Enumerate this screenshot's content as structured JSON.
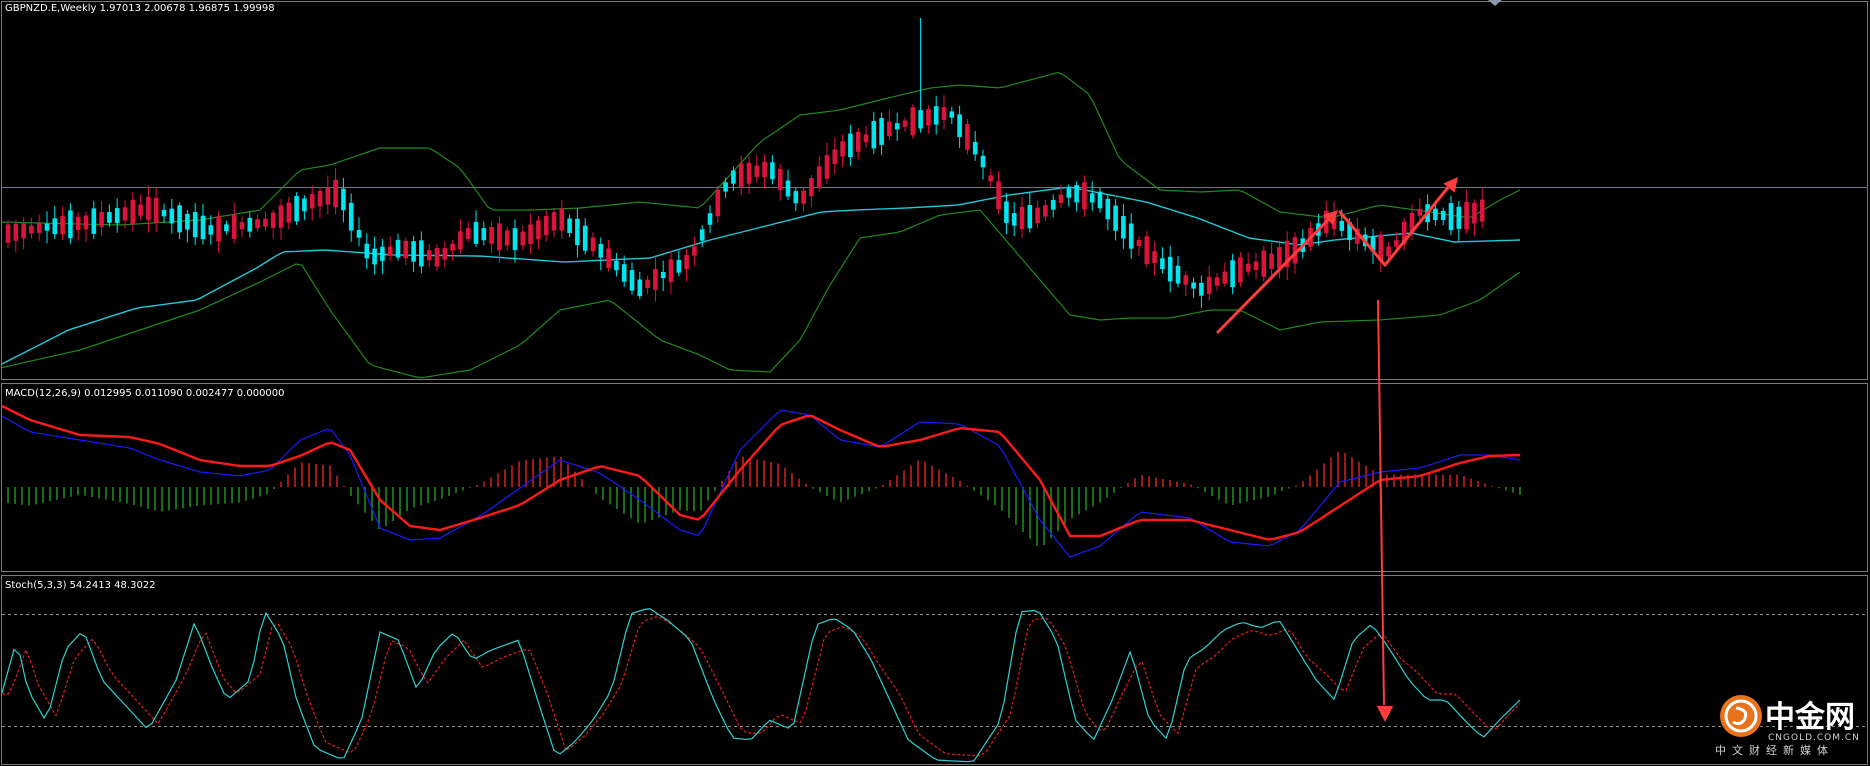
{
  "colors": {
    "background": "#000000",
    "bull_candle": "#dc143c",
    "bear_candle": "#00e5ee",
    "bollinger": "#1f8a1f",
    "moving_average": "#20c8d8",
    "macd_line": "#1a1aff",
    "signal_line": "#ff1a1a",
    "histogram_pos": "#c81e1e",
    "histogram_neg": "#1e8a1e",
    "stoch_main": "#30d0d0",
    "stoch_signal": "#e02020",
    "annotation": "#ff3c3c",
    "level_line": "#5e7a84"
  },
  "price_panel": {
    "label": "GBPNZD.E,Weekly  1.97013 2.00678 1.96875 1.99998"
  },
  "macd_panel": {
    "label": "MACD(12,26,9) 0.012995 0.011090 0.002477 0.000000"
  },
  "stoch_panel": {
    "label": "Stoch(5,3,3) 54.2413 48.3022"
  },
  "logo": {
    "cn": "中金网",
    "en": "CNGOLD.COM.CN",
    "sub": "中文财经新媒体",
    "icon": "gold-coin-logo-icon"
  },
  "chart_data": [
    {
      "type": "candlestick",
      "symbol": "GBPNZD.E",
      "timeframe": "Weekly",
      "last_bar": {
        "open": 1.97013,
        "high": 2.00678,
        "low": 1.96875,
        "close": 1.99998
      },
      "overlays": [
        "Bollinger Bands",
        "Moving Average"
      ],
      "annotations": [
        "rising zig-zag arrow",
        "arrow down to stochastic oversold"
      ]
    },
    {
      "type": "line",
      "indicator": "MACD",
      "params": [
        12,
        26,
        9
      ],
      "values": {
        "macd": 0.012995,
        "signal": 0.01109,
        "histogram": 0.002477,
        "extra": 0.0
      }
    },
    {
      "type": "line",
      "indicator": "Stochastic",
      "params": [
        5,
        3,
        3
      ],
      "values": {
        "main": 54.2413,
        "signal": 48.3022
      },
      "levels": [
        80,
        20
      ]
    }
  ]
}
